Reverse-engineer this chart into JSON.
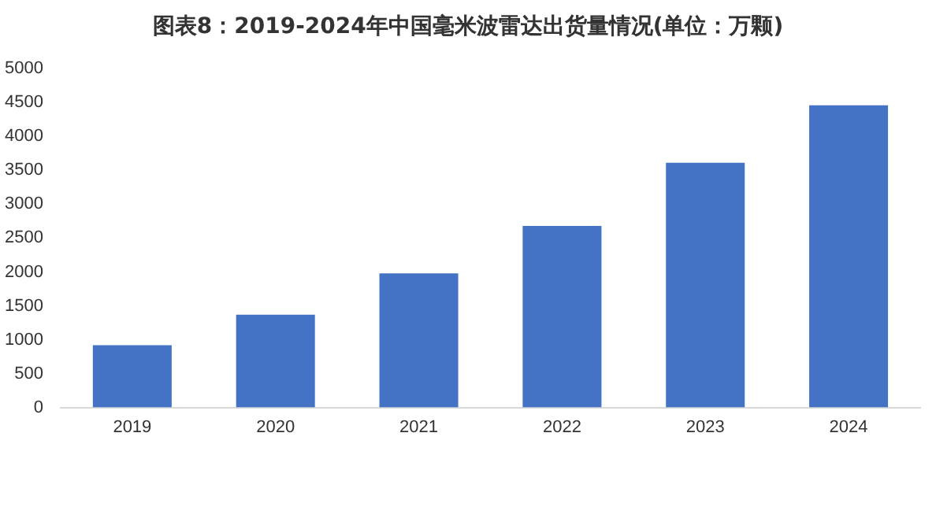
{
  "chart_data": {
    "type": "bar",
    "title": "图表8：2019-2024年中国毫米波雷达出货量情况(单位：万颗)",
    "categories": [
      "2019",
      "2020",
      "2021",
      "2022",
      "2023",
      "2024"
    ],
    "values": [
      920,
      1370,
      1980,
      2680,
      3610,
      4460
    ],
    "color": "#4472c4",
    "ylim": [
      0,
      5000
    ],
    "yticks": [
      0,
      500,
      1000,
      1500,
      2000,
      2500,
      3000,
      3500,
      4000,
      4500,
      5000
    ],
    "grid": false,
    "legend": false
  }
}
